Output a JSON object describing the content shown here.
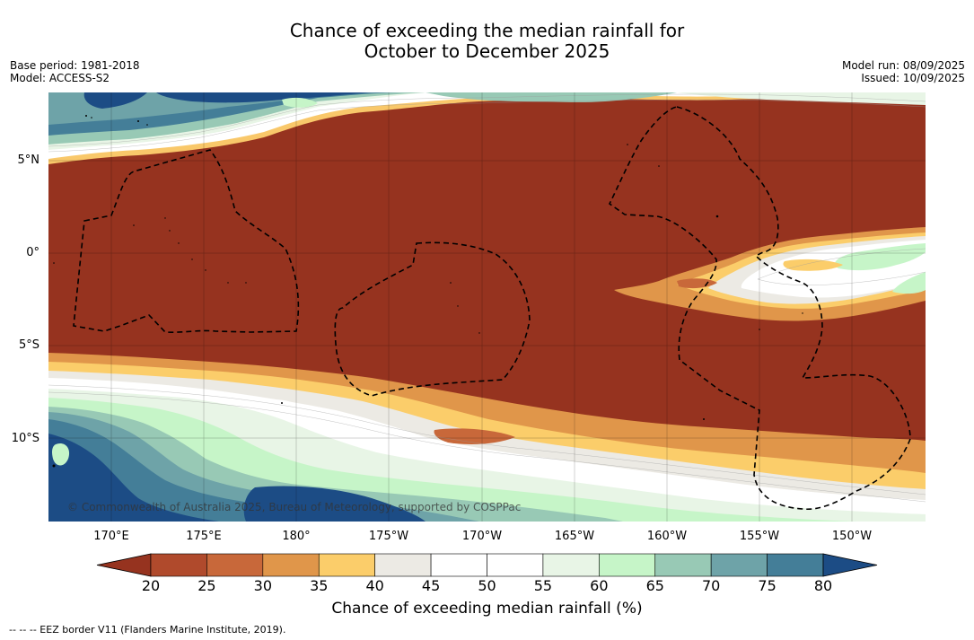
{
  "title": {
    "line1": "Chance of exceeding the median rainfall for",
    "line2": "October to December 2025"
  },
  "meta": {
    "base_period": "Base period: 1981-2018",
    "model": "Model: ACCESS-S2",
    "model_run": "Model run: 08/09/2025",
    "issued": "Issued: 10/09/2025"
  },
  "map": {
    "lat_labels": [
      "5°N",
      "0°",
      "5°S",
      "10°S"
    ],
    "lon_labels": [
      "170°E",
      "175°E",
      "180°",
      "175°W",
      "170°W",
      "165°W",
      "160°W",
      "155°W",
      "150°W"
    ],
    "credit": "© Commonwealth of Australia 2025, Bureau of Meteorology, supported by COSPPac"
  },
  "colorbar": {
    "ticks": [
      "20",
      "25",
      "30",
      "35",
      "40",
      "45",
      "50",
      "55",
      "60",
      "65",
      "70",
      "75",
      "80"
    ],
    "colors": [
      "#96331f",
      "#b04a2c",
      "#c8683a",
      "#e0964a",
      "#fbcd6a",
      "#eceae4",
      "#ffffff",
      "#ffffff",
      "#e8f5e6",
      "#c6f5c8",
      "#98c9b5",
      "#6ea3a8",
      "#447e98",
      "#1c4c85"
    ],
    "label": "Chance of exceeding median rainfall (%)"
  },
  "footer": {
    "eez": "--  --  -- EEZ border V11 (Flanders Marine Institute, 2019)."
  }
}
